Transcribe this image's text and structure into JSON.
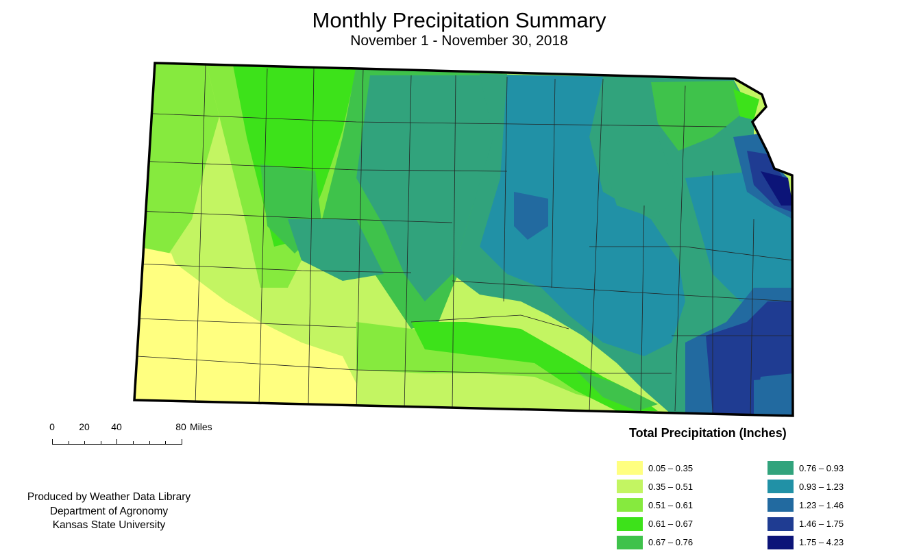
{
  "title": "Monthly Precipitation Summary",
  "subtitle": "November 1 - November 30, 2018",
  "scale": {
    "ticks": [
      "0",
      "20",
      "40",
      "80"
    ],
    "unit": "Miles"
  },
  "credit": [
    "Produced by Weather Data Library",
    "Department of Agronomy",
    "Kansas State University"
  ],
  "legend": {
    "title": "Total Precipitation (Inches)",
    "items": [
      {
        "label": "0.05 – 0.35",
        "color": "#ffff80"
      },
      {
        "label": "0.35 – 0.51",
        "color": "#c3f562"
      },
      {
        "label": "0.51 – 0.61",
        "color": "#86ea3e"
      },
      {
        "label": "0.61 – 0.67",
        "color": "#3de21a"
      },
      {
        "label": "0.67 – 0.76",
        "color": "#3fc24b"
      },
      {
        "label": "0.76 – 0.93",
        "color": "#31a37c"
      },
      {
        "label": "0.93 – 1.23",
        "color": "#2191a6"
      },
      {
        "label": "1.23 – 1.46",
        "color": "#226aa0"
      },
      {
        "label": "1.46 – 1.75",
        "color": "#1f3c92"
      },
      {
        "label": "1.75 – 4.23",
        "color": "#0c1478"
      }
    ]
  }
}
